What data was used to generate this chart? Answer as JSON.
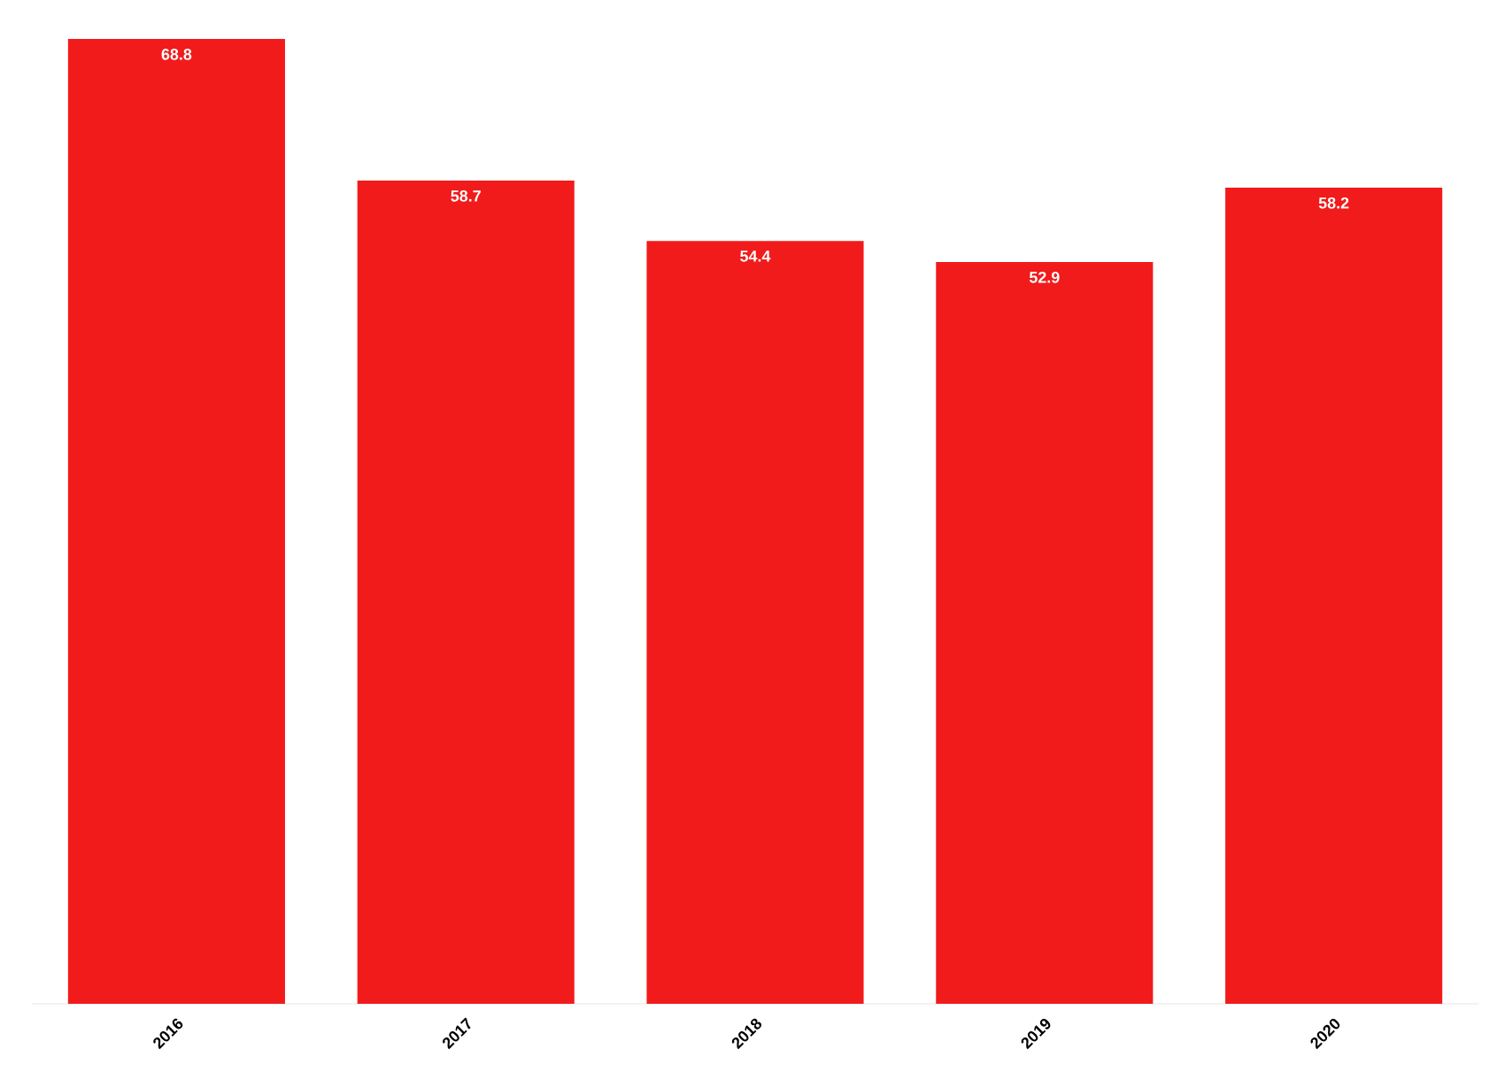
{
  "chart_data": {
    "type": "bar",
    "categories": [
      "2016",
      "2017",
      "2018",
      "2019",
      "2020"
    ],
    "values": [
      68.8,
      58.7,
      54.4,
      52.9,
      58.2
    ],
    "color": "#f21b1b",
    "data_labels": true,
    "tick_labels": "x"
  }
}
